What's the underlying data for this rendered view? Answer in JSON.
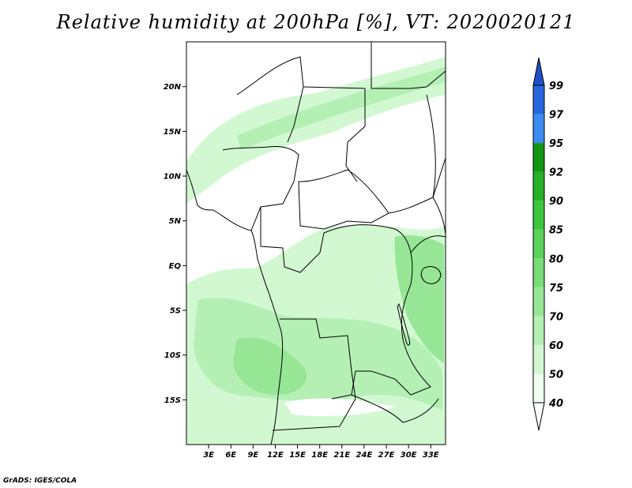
{
  "title": "Relative humidity at 200hPa [%], VT: 2020020121",
  "credit": "GrADS: IGES/COLA",
  "map": {
    "lon_range": [
      0,
      35
    ],
    "lat_range": [
      -20,
      25
    ],
    "lat_ticks": [
      {
        "lat": 20,
        "label": "20N"
      },
      {
        "lat": 15,
        "label": "15N"
      },
      {
        "lat": 10,
        "label": "10N"
      },
      {
        "lat": 5,
        "label": "5N"
      },
      {
        "lat": 0,
        "label": "EQ"
      },
      {
        "lat": -5,
        "label": "5S"
      },
      {
        "lat": -10,
        "label": "10S"
      },
      {
        "lat": -15,
        "label": "15S"
      }
    ],
    "lon_ticks": [
      {
        "lon": 3,
        "label": "3E"
      },
      {
        "lon": 6,
        "label": "6E"
      },
      {
        "lon": 9,
        "label": "9E"
      },
      {
        "lon": 12,
        "label": "12E"
      },
      {
        "lon": 15,
        "label": "15E"
      },
      {
        "lon": 18,
        "label": "18E"
      },
      {
        "lon": 21,
        "label": "21E"
      },
      {
        "lon": 24,
        "label": "24E"
      },
      {
        "lon": 27,
        "label": "27E"
      },
      {
        "lon": 30,
        "label": "30E"
      },
      {
        "lon": 33,
        "label": "33E"
      }
    ]
  },
  "colorbar": {
    "labels": [
      "40",
      "50",
      "60",
      "70",
      "75",
      "80",
      "85",
      "90",
      "92",
      "95",
      "97",
      "99"
    ],
    "colors": [
      "#f0fff0",
      "#d2f8d2",
      "#b4f0b4",
      "#96e696",
      "#78dc78",
      "#5ad25a",
      "#3cc63c",
      "#28b028",
      "#149614",
      "#3c8cf0",
      "#2868dc",
      "#1e50c8"
    ]
  }
}
